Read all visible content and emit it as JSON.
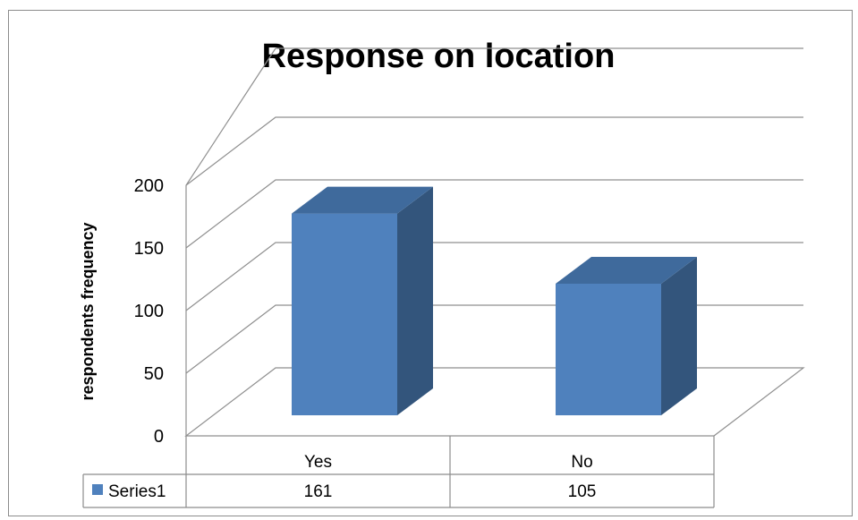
{
  "chart_data": {
    "type": "bar",
    "title": "Response on location",
    "ylabel": "respondents frequency",
    "xlabel": "",
    "categories": [
      "Yes",
      "No"
    ],
    "series": [
      {
        "name": "Series1",
        "values": [
          161,
          105
        ],
        "color": "#4f81bd"
      }
    ],
    "ylim": [
      0,
      200
    ],
    "yticks": [
      0,
      50,
      100,
      150,
      200
    ],
    "grid": true,
    "three_d": true,
    "legend": "data-table"
  }
}
